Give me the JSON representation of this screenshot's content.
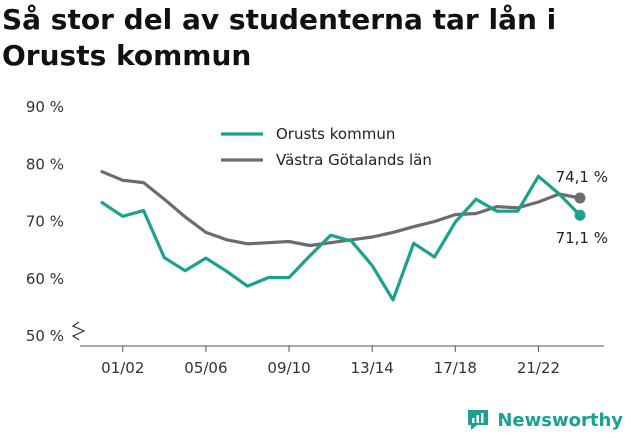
{
  "title": "Så stor del av studenterna tar lån i Orusts kommun",
  "brand": {
    "name": "Newsworthy",
    "icon": "newsworthy-logo-icon",
    "color": "#1aa28e"
  },
  "chart_data": {
    "type": "line",
    "title": "Så stor del av studenterna tar lån i Orusts kommun",
    "x": [
      "00/01",
      "01/02",
      "02/03",
      "03/04",
      "04/05",
      "05/06",
      "06/07",
      "07/08",
      "08/09",
      "09/10",
      "10/11",
      "11/12",
      "12/13",
      "13/14",
      "14/15",
      "15/16",
      "16/17",
      "17/18",
      "18/19",
      "19/20",
      "20/21",
      "21/22",
      "22/23",
      "23/24"
    ],
    "x_tick_labels": [
      "01/02",
      "05/06",
      "09/10",
      "13/14",
      "17/18",
      "21/22"
    ],
    "y_ticks": [
      50,
      60,
      70,
      80,
      90
    ],
    "y_tick_labels": [
      "50 %",
      "60 %",
      "70 %",
      "80 %",
      "90 %"
    ],
    "ylim": [
      50,
      90
    ],
    "y_axis_broken": true,
    "grid": false,
    "legend_position": "top-center",
    "series": [
      {
        "name": "Orusts kommun",
        "color": "#1aa28e",
        "values": [
          73.3,
          70.9,
          71.9,
          63.7,
          61.4,
          63.6,
          61.3,
          58.7,
          60.2,
          60.2,
          64.0,
          67.6,
          66.6,
          62.3,
          56.3,
          66.2,
          63.8,
          69.9,
          73.9,
          71.8,
          71.8,
          77.9,
          74.8,
          71.1
        ],
        "end_label": "71,1 %"
      },
      {
        "name": "Västra Götalands län",
        "color": "#6c6c6f",
        "values": [
          78.7,
          77.2,
          76.8,
          73.9,
          70.8,
          68.1,
          66.8,
          66.1,
          66.3,
          66.5,
          65.8,
          66.3,
          66.8,
          67.3,
          68.1,
          69.1,
          70.0,
          71.2,
          71.4,
          72.6,
          72.4,
          73.4,
          74.8,
          74.1
        ],
        "end_label": "74,1 %"
      }
    ]
  }
}
